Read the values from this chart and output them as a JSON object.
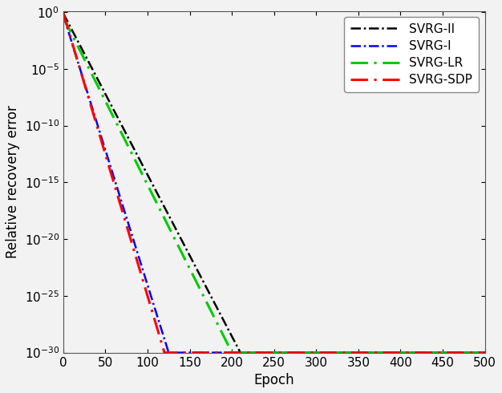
{
  "title": "",
  "xlabel": "Epoch",
  "ylabel": "Relative recovery error",
  "xlim": [
    0,
    500
  ],
  "x_ticks": [
    0,
    50,
    100,
    150,
    200,
    250,
    300,
    350,
    400,
    450,
    500
  ],
  "y_ticks_exp": [
    0,
    -5,
    -10,
    -15,
    -20,
    -25,
    -30
  ],
  "floor_value_log": -30,
  "series": [
    {
      "name": "SVRG-II",
      "color": "#000000",
      "lw": 1.8,
      "start_log": -0.1,
      "converge_epoch": 210,
      "curvature": 2.5
    },
    {
      "name": "SVRG-I",
      "color": "#0000ff",
      "lw": 1.8,
      "start_log": -0.25,
      "converge_epoch": 125,
      "curvature": 2.5
    },
    {
      "name": "SVRG-LR",
      "color": "#00cc00",
      "lw": 2.2,
      "start_log": -0.45,
      "converge_epoch": 200,
      "curvature": 2.5
    },
    {
      "name": "SVRG-SDP",
      "color": "#ff0000",
      "lw": 2.2,
      "start_log": -0.05,
      "converge_epoch": 120,
      "curvature": 2.5
    }
  ],
  "legend_loc": "upper right",
  "figsize": [
    6.26,
    4.9
  ],
  "dpi": 100,
  "background_color": "#f0f0f0"
}
